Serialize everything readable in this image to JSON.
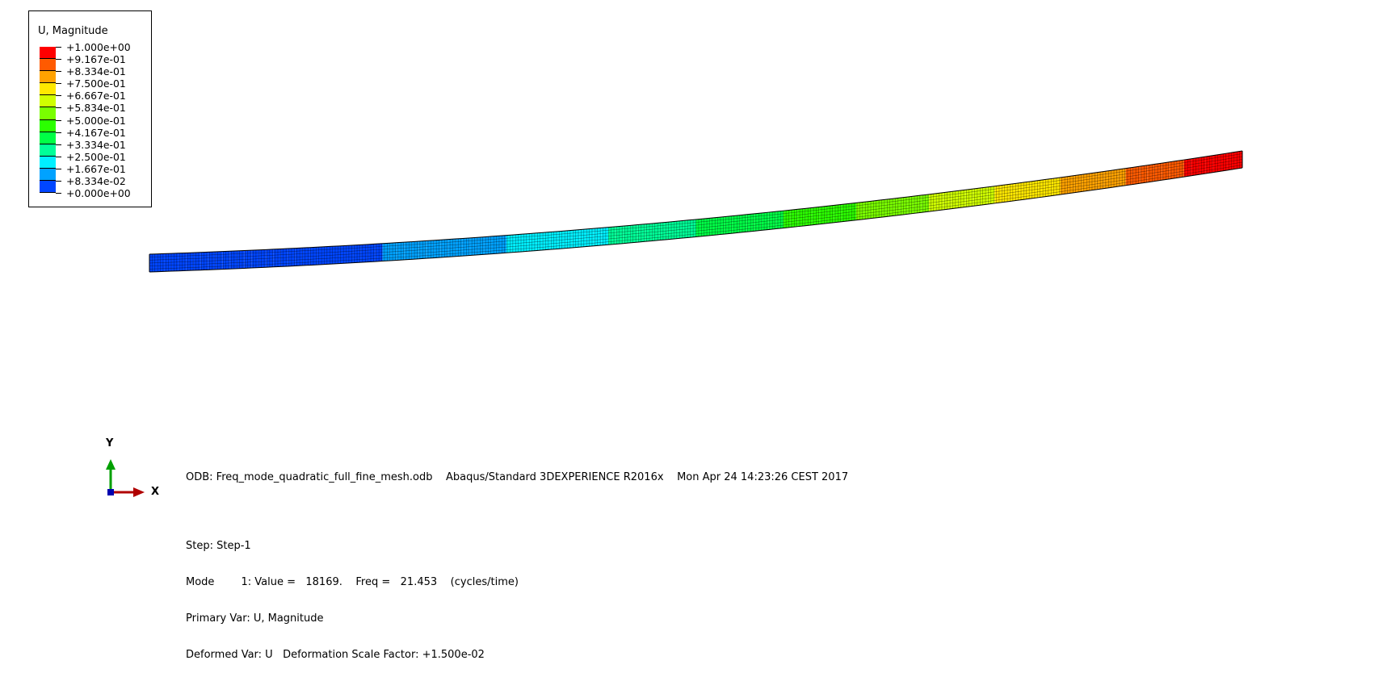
{
  "legend": {
    "title": "U, Magnitude",
    "labels": [
      "+1.000e+00",
      "+9.167e-01",
      "+8.334e-01",
      "+7.500e-01",
      "+6.667e-01",
      "+5.834e-01",
      "+5.000e-01",
      "+4.167e-01",
      "+3.334e-01",
      "+2.500e-01",
      "+1.667e-01",
      "+8.334e-02",
      "+0.000e+00"
    ],
    "colors": [
      "#ff0000",
      "#ff5a00",
      "#ffa200",
      "#ffe800",
      "#d0ff00",
      "#7aff00",
      "#2bff00",
      "#00ff46",
      "#00ff98",
      "#00f0ff",
      "#00a2ff",
      "#0046ff"
    ]
  },
  "info": {
    "odb_line": "ODB: Freq_mode_quadratic_full_fine_mesh.odb    Abaqus/Standard 3DEXPERIENCE R2016x    Mon Apr 24 14:23:26 CEST 2017",
    "step_line": "Step: Step-1",
    "mode_line": "Mode        1: Value =   18169.    Freq =   21.453    (cycles/time)",
    "primary_var_line": "Primary Var: U, Magnitude",
    "deformed_var_line": "Deformed Var: U   Deformation Scale Factor: +1.500e-02"
  },
  "triad": {
    "x_label": "X",
    "y_label": "Y"
  },
  "colors": {
    "background": "#ffffff",
    "mesh_lines": "#000000",
    "x_axis": "#b00000",
    "y_axis": "#00a000",
    "z_axis": "#0000b0"
  }
}
